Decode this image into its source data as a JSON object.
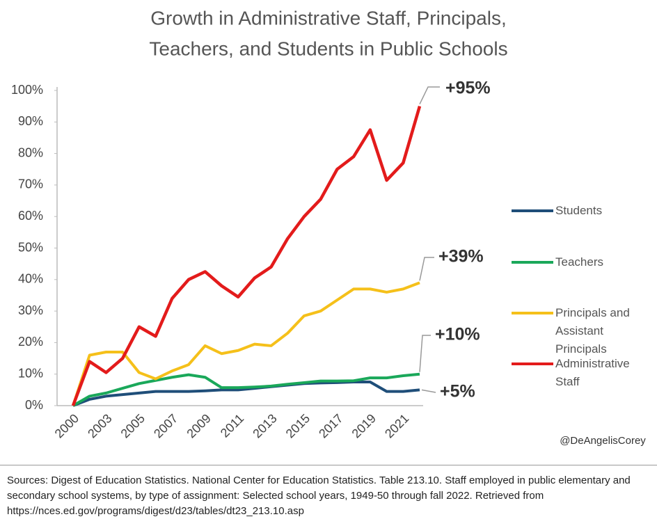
{
  "chart_data": {
    "type": "line",
    "title": [
      "Growth in Administrative Staff, Principals,",
      "Teachers, and Students in Public Schools"
    ],
    "categories": [
      "2000",
      null,
      "2003",
      null,
      "2005",
      null,
      "2007",
      null,
      "2009",
      null,
      "2011",
      null,
      "2013",
      null,
      "2015",
      null,
      "2017",
      null,
      "2019",
      null,
      "2021",
      null
    ],
    "series": [
      {
        "name": "Students",
        "color": "#1f4e79",
        "values": [
          0,
          2,
          3,
          3.5,
          4,
          4.5,
          4.5,
          4.5,
          4.7,
          5,
          5,
          5.5,
          6,
          6.5,
          7,
          7.2,
          7.3,
          7.5,
          7.5,
          4.5,
          4.5,
          5
        ]
      },
      {
        "name": "Teachers",
        "color": "#1aa85a",
        "values": [
          0,
          3,
          4,
          5.5,
          7,
          8,
          9,
          9.8,
          9,
          5.7,
          5.7,
          5.9,
          6.2,
          6.8,
          7.3,
          7.8,
          7.8,
          7.9,
          8.8,
          8.8,
          9.5,
          10
        ]
      },
      {
        "name": "Principals and Assistant Principals",
        "color": "#f5c01a",
        "values": [
          0,
          16,
          17,
          17,
          10.5,
          8.5,
          11,
          13,
          19,
          16.5,
          17.5,
          19.5,
          19,
          23,
          28.5,
          30,
          33.5,
          37,
          37,
          36,
          37,
          39
        ]
      },
      {
        "name": "Administrative Staff",
        "color": "#e31b1b",
        "values": [
          0,
          14,
          10.5,
          15,
          25,
          22,
          34,
          40,
          42.5,
          38,
          34.5,
          40.5,
          44,
          53,
          60,
          65.5,
          75,
          79,
          87.5,
          71.5,
          77,
          95
        ]
      }
    ],
    "ylim": [
      0,
      100
    ],
    "yticks": [
      {
        "value": 0,
        "label": "0%"
      },
      {
        "value": 10,
        "label": "10%"
      },
      {
        "value": 20,
        "label": "20%"
      },
      {
        "value": 30,
        "label": "30%"
      },
      {
        "value": 40,
        "label": "40%"
      },
      {
        "value": 50,
        "label": "50%"
      },
      {
        "value": 60,
        "label": "60%"
      },
      {
        "value": 70,
        "label": "70%"
      },
      {
        "value": 80,
        "label": "80%"
      },
      {
        "value": 90,
        "label": "90%"
      },
      {
        "value": 100,
        "label": "100%"
      }
    ],
    "grid": false,
    "legend": "right",
    "annotations": [
      "+95%",
      "+39%",
      "+10%",
      "+5%"
    ],
    "credit": "@DeAngelisCorey",
    "source": "Sources: Digest of Education Statistics. National Center for Education Statistics. Table 213.10. Staff employed in public elementary and secondary school systems, by type of assignment: Selected school years, 1949-50 through fall 2022. Retrieved from https://nces.ed.gov/programs/digest/d23/tables/dt23_213.10.asp"
  }
}
